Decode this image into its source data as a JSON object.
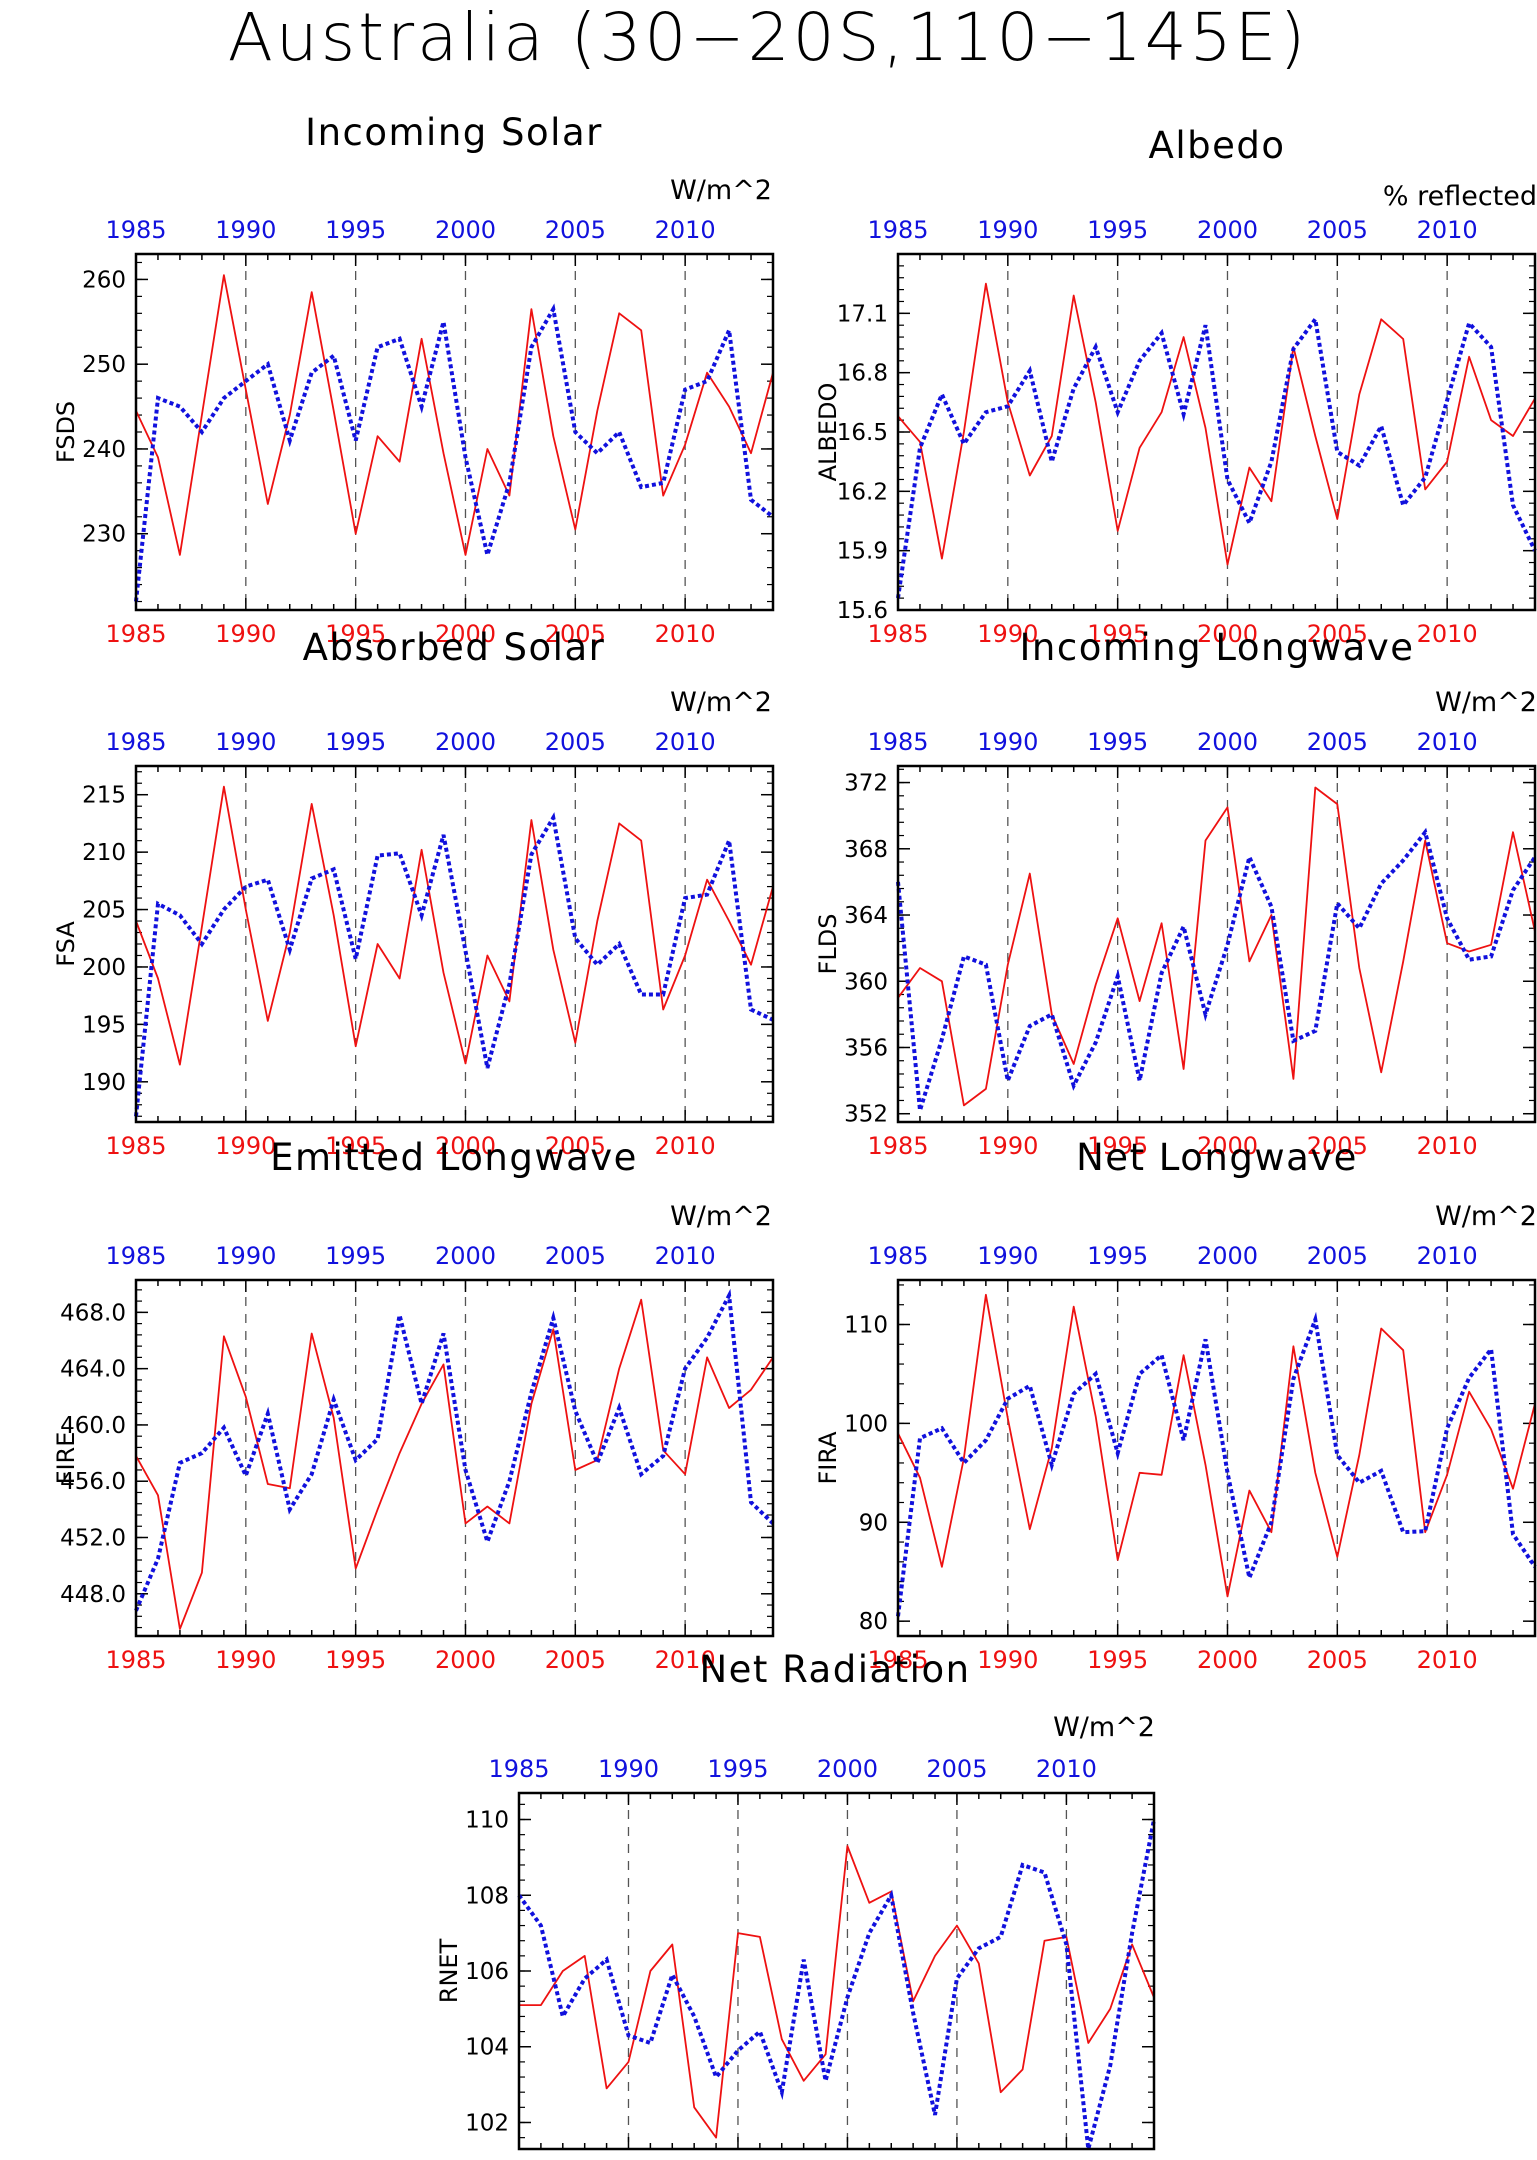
{
  "title": "Australia (30−20S,110−145E)",
  "colors": {
    "red_series": "#ee1111",
    "blue_series": "#1111dd",
    "axis": "#000000",
    "gridline": "#555555"
  },
  "chart_data": [
    {
      "type": "line",
      "title": "Incoming Solar",
      "ylabel": "FSDS",
      "units": "W/m^2",
      "xlim": [
        1985,
        2014
      ],
      "ylim": [
        221,
        263
      ],
      "yticks": [
        "230",
        "240",
        "250",
        "260"
      ],
      "xticks_bottom": [
        "1985",
        "1990",
        "1995",
        "2000",
        "2005",
        "2010"
      ],
      "xticks_top": [
        "1985",
        "1990",
        "1995",
        "2000",
        "2005",
        "2010"
      ],
      "year_lines": [
        1990,
        1995,
        2000,
        2005,
        2010
      ],
      "red": {
        "x": [
          1985,
          1986,
          1987,
          1988,
          1989,
          1990,
          1991,
          1992,
          1993,
          1994,
          1995,
          1996,
          1997,
          1998,
          1999,
          2000,
          2001,
          2002,
          2003,
          2004,
          2005,
          2006,
          2007,
          2008,
          2009,
          2010,
          2011,
          2012,
          2013,
          2014
        ],
        "values": [
          244.5,
          239,
          227.5,
          244,
          260.5,
          247,
          233.5,
          244,
          258.5,
          244.5,
          230,
          241.5,
          238.5,
          253,
          239.5,
          227.5,
          240,
          234.5,
          256.5,
          241.5,
          230.5,
          244.5,
          256,
          254,
          234.5,
          240.5,
          249,
          245,
          239.5,
          249
        ]
      },
      "blue": {
        "x": [
          1985,
          1986,
          1987,
          1988,
          1989,
          1990,
          1991,
          1992,
          1993,
          1994,
          1995,
          1996,
          1997,
          1998,
          1999,
          2000,
          2001,
          2002,
          2003,
          2004,
          2005,
          2006,
          2007,
          2008,
          2009,
          2010,
          2011,
          2012,
          2013,
          2014
        ],
        "values": [
          222,
          246,
          245,
          242,
          246,
          248,
          250,
          241,
          249,
          251,
          241,
          252,
          253,
          245,
          255,
          239,
          227.5,
          236,
          252,
          256.5,
          242,
          239.5,
          242,
          235.5,
          236,
          247,
          248,
          254,
          234,
          232
        ]
      }
    },
    {
      "type": "line",
      "title": "Albedo",
      "ylabel": "ALBEDO",
      "units": "% reflected",
      "xlim": [
        1985,
        2014
      ],
      "ylim": [
        15.6,
        17.4
      ],
      "yticks": [
        "15.6",
        "15.9",
        "16.2",
        "16.5",
        "16.8",
        "17.1"
      ],
      "xticks_bottom": [
        "1985",
        "1990",
        "1995",
        "2000",
        "2005",
        "2010"
      ],
      "xticks_top": [
        "1985",
        "1990",
        "1995",
        "2000",
        "2005",
        "2010"
      ],
      "year_lines": [
        1990,
        1995,
        2000,
        2005,
        2010
      ],
      "red": {
        "x": [
          1985,
          1986,
          1987,
          1988,
          1989,
          1990,
          1991,
          1992,
          1993,
          1994,
          1995,
          1996,
          1997,
          1998,
          1999,
          2000,
          2001,
          2002,
          2003,
          2004,
          2005,
          2006,
          2007,
          2008,
          2009,
          2010,
          2011,
          2012,
          2013,
          2014
        ],
        "values": [
          16.58,
          16.45,
          15.86,
          16.5,
          17.25,
          16.65,
          16.28,
          16.48,
          17.19,
          16.65,
          16.0,
          16.42,
          16.6,
          16.98,
          16.52,
          15.83,
          16.32,
          16.15,
          16.93,
          16.48,
          16.06,
          16.69,
          17.07,
          16.97,
          16.21,
          16.35,
          16.88,
          16.56,
          16.48,
          16.67
        ]
      },
      "blue": {
        "x": [
          1985,
          1986,
          1987,
          1988,
          1989,
          1990,
          1991,
          1992,
          1993,
          1994,
          1995,
          1996,
          1997,
          1998,
          1999,
          2000,
          2001,
          2002,
          2003,
          2004,
          2005,
          2006,
          2007,
          2008,
          2009,
          2010,
          2011,
          2012,
          2013,
          2014
        ],
        "values": [
          15.66,
          16.42,
          16.69,
          16.44,
          16.6,
          16.63,
          16.81,
          16.35,
          16.72,
          16.93,
          16.6,
          16.86,
          17.0,
          16.59,
          17.04,
          16.26,
          16.04,
          16.35,
          16.92,
          17.07,
          16.4,
          16.33,
          16.53,
          16.13,
          16.27,
          16.66,
          17.05,
          16.93,
          16.13,
          15.9
        ]
      }
    },
    {
      "type": "line",
      "title": "Absorbed Solar",
      "ylabel": "FSA",
      "units": "W/m^2",
      "xlim": [
        1985,
        2014
      ],
      "ylim": [
        186.5,
        217.5
      ],
      "yticks": [
        "190",
        "195",
        "200",
        "205",
        "210",
        "215"
      ],
      "xticks_bottom": [
        "1985",
        "1990",
        "1995",
        "2000",
        "2005",
        "2010"
      ],
      "xticks_top": [
        "1985",
        "1990",
        "1995",
        "2000",
        "2005",
        "2010"
      ],
      "year_lines": [
        1990,
        1995,
        2000,
        2005,
        2010
      ],
      "red": {
        "x": [
          1985,
          1986,
          1987,
          1988,
          1989,
          1990,
          1991,
          1992,
          1993,
          1994,
          1995,
          1996,
          1997,
          1998,
          1999,
          2000,
          2001,
          2002,
          2003,
          2004,
          2005,
          2006,
          2007,
          2008,
          2009,
          2010,
          2011,
          2012,
          2013,
          2014
        ],
        "values": [
          204,
          199,
          191.5,
          203.5,
          215.7,
          205,
          195.3,
          203,
          214.2,
          204.5,
          193.1,
          202,
          199,
          210.2,
          199.5,
          191.6,
          201,
          197,
          212.8,
          201.5,
          193.4,
          204,
          212.5,
          211,
          196.3,
          201,
          207.6,
          204,
          200.2,
          207
        ]
      },
      "blue": {
        "x": [
          1985,
          1986,
          1987,
          1988,
          1989,
          1990,
          1991,
          1992,
          1993,
          1994,
          1995,
          1996,
          1997,
          1998,
          1999,
          2000,
          2001,
          2002,
          2003,
          2004,
          2005,
          2006,
          2007,
          2008,
          2009,
          2010,
          2011,
          2012,
          2013,
          2014
        ],
        "values": [
          187,
          205.5,
          204.5,
          202,
          205,
          207,
          207.6,
          201.5,
          207.7,
          208.5,
          200.7,
          209.7,
          209.9,
          204.5,
          211.5,
          201.4,
          191.2,
          198.5,
          209.8,
          213,
          202.5,
          200.2,
          202,
          197.6,
          197.6,
          206,
          206.3,
          211,
          196.3,
          195.4
        ]
      }
    },
    {
      "type": "line",
      "title": "Incoming Longwave",
      "ylabel": "FLDS",
      "units": "W/m^2",
      "xlim": [
        1985,
        2014
      ],
      "ylim": [
        351.5,
        373
      ],
      "yticks": [
        "352",
        "356",
        "360",
        "364",
        "368",
        "372"
      ],
      "xticks_bottom": [
        "1985",
        "1990",
        "1995",
        "2000",
        "2005",
        "2010"
      ],
      "xticks_top": [
        "1985",
        "1990",
        "1995",
        "2000",
        "2005",
        "2010"
      ],
      "year_lines": [
        1990,
        1995,
        2000,
        2005,
        2010
      ],
      "red": {
        "x": [
          1985,
          1986,
          1987,
          1988,
          1989,
          1990,
          1991,
          1992,
          1993,
          1994,
          1995,
          1996,
          1997,
          1998,
          1999,
          2000,
          2001,
          2002,
          2003,
          2004,
          2005,
          2006,
          2007,
          2008,
          2009,
          2010,
          2011,
          2012,
          2013,
          2014
        ],
        "values": [
          359,
          360.8,
          360,
          352.5,
          353.5,
          361,
          366.5,
          358,
          355,
          359.8,
          363.8,
          358.8,
          363.5,
          354.7,
          368.5,
          370.5,
          361.2,
          364,
          354.1,
          371.7,
          370.7,
          360.8,
          354.5,
          361.2,
          368.5,
          362.3,
          361.8,
          362.2,
          369,
          363
        ]
      },
      "blue": {
        "x": [
          1985,
          1986,
          1987,
          1988,
          1989,
          1990,
          1991,
          1992,
          1993,
          1994,
          1995,
          1996,
          1997,
          1998,
          1999,
          2000,
          2001,
          2002,
          2003,
          2004,
          2005,
          2006,
          2007,
          2008,
          2009,
          2010,
          2011,
          2012,
          2013,
          2014
        ],
        "values": [
          366,
          352.2,
          356.5,
          361.5,
          361,
          354,
          357.3,
          358,
          353.7,
          356.3,
          360.3,
          354,
          360.5,
          363.3,
          358,
          362.2,
          367.5,
          364.5,
          356.4,
          357,
          364.7,
          363.2,
          365.9,
          367.3,
          369,
          363.8,
          361.3,
          361.5,
          365.5,
          367.5
        ]
      }
    },
    {
      "type": "line",
      "title": "Emitted Longwave",
      "ylabel": "FIRE",
      "units": "W/m^2",
      "xlim": [
        1985,
        2014
      ],
      "ylim": [
        445,
        470.3
      ],
      "yticks": [
        "448.0",
        "452.0",
        "456.0",
        "460.0",
        "464.0",
        "468.0"
      ],
      "xticks_bottom": [
        "1985",
        "1990",
        "1995",
        "2000",
        "2005",
        "2010"
      ],
      "xticks_top": [
        "1985",
        "1990",
        "1995",
        "2000",
        "2005",
        "2010"
      ],
      "year_lines": [
        1990,
        1995,
        2000,
        2005,
        2010
      ],
      "red": {
        "x": [
          1985,
          1986,
          1987,
          1988,
          1989,
          1990,
          1991,
          1992,
          1993,
          1994,
          1995,
          1996,
          1997,
          1998,
          1999,
          2000,
          2001,
          2002,
          2003,
          2004,
          2005,
          2006,
          2007,
          2008,
          2009,
          2010,
          2011,
          2012,
          2013,
          2014
        ],
        "values": [
          457.8,
          455,
          445.5,
          449.5,
          466.3,
          462,
          455.8,
          455.5,
          466.5,
          460.5,
          449.8,
          454,
          458,
          461.5,
          464.3,
          453,
          454.2,
          453,
          461.5,
          466.8,
          456.8,
          457.5,
          464,
          468.9,
          458.2,
          456.5,
          464.8,
          461.2,
          462.5,
          464.8
        ]
      },
      "blue": {
        "x": [
          1985,
          1986,
          1987,
          1988,
          1989,
          1990,
          1991,
          1992,
          1993,
          1994,
          1995,
          1996,
          1997,
          1998,
          1999,
          2000,
          2001,
          2002,
          2003,
          2004,
          2005,
          2006,
          2007,
          2008,
          2009,
          2010,
          2011,
          2012,
          2013,
          2014
        ],
        "values": [
          446.8,
          450.5,
          457.3,
          458,
          459.8,
          456.4,
          460.8,
          454,
          456.5,
          461.8,
          457.5,
          459,
          467.8,
          461.5,
          466.5,
          456.8,
          451.7,
          456,
          462.3,
          467.6,
          461,
          457.3,
          461.2,
          456.5,
          457.8,
          464,
          466.2,
          469.2,
          454.5,
          453
        ]
      }
    },
    {
      "type": "line",
      "title": "Net Longwave",
      "ylabel": "FIRA",
      "units": "W/m^2",
      "xlim": [
        1985,
        2014
      ],
      "ylim": [
        78.5,
        114.5
      ],
      "yticks": [
        "80",
        "90",
        "100",
        "110"
      ],
      "xticks_bottom": [
        "1985",
        "1990",
        "1995",
        "2000",
        "2005",
        "2010"
      ],
      "xticks_top": [
        "1985",
        "1990",
        "1995",
        "2000",
        "2005",
        "2010"
      ],
      "year_lines": [
        1990,
        1995,
        2000,
        2005,
        2010
      ],
      "red": {
        "x": [
          1985,
          1986,
          1987,
          1988,
          1989,
          1990,
          1991,
          1992,
          1993,
          1994,
          1995,
          1996,
          1997,
          1998,
          1999,
          2000,
          2001,
          2002,
          2003,
          2004,
          2005,
          2006,
          2007,
          2008,
          2009,
          2010,
          2011,
          2012,
          2013,
          2014
        ],
        "values": [
          99,
          94.5,
          85.5,
          96.5,
          113,
          100.5,
          89.3,
          97.5,
          111.8,
          100.7,
          86.2,
          95,
          94.8,
          106.9,
          95.8,
          82.5,
          93.2,
          89,
          107.8,
          95,
          86.5,
          96.8,
          109.6,
          107.4,
          89,
          94.8,
          103.2,
          99.4,
          93.4,
          102
        ]
      },
      "blue": {
        "x": [
          1985,
          1986,
          1987,
          1988,
          1989,
          1990,
          1991,
          1992,
          1993,
          1994,
          1995,
          1996,
          1997,
          1998,
          1999,
          2000,
          2001,
          2002,
          2003,
          2004,
          2005,
          2006,
          2007,
          2008,
          2009,
          2010,
          2011,
          2012,
          2013,
          2014
        ],
        "values": [
          80.5,
          98.5,
          99.5,
          96,
          98.3,
          102.5,
          103.8,
          95.8,
          103,
          105,
          97,
          105,
          106.9,
          98.3,
          108.5,
          95,
          84.4,
          90,
          104.5,
          110.5,
          96.8,
          94,
          95.2,
          89,
          89.1,
          99.5,
          104.6,
          107.5,
          88.8,
          85.5
        ]
      }
    },
    {
      "type": "line",
      "title": "Net Radiation",
      "ylabel": "RNET",
      "units": "W/m^2",
      "xlim": [
        1985,
        2014
      ],
      "ylim": [
        101.3,
        110.7
      ],
      "yticks": [
        "102",
        "104",
        "106",
        "108",
        "110"
      ],
      "xticks_bottom": [
        "1985",
        "1990",
        "1995",
        "2000",
        "2005",
        "2010"
      ],
      "xticks_top": [
        "1985",
        "1990",
        "1995",
        "2000",
        "2005",
        "2010"
      ],
      "year_lines": [
        1990,
        1995,
        2000,
        2005,
        2010
      ],
      "red": {
        "x": [
          1985,
          1986,
          1987,
          1988,
          1989,
          1990,
          1991,
          1992,
          1993,
          1994,
          1995,
          1996,
          1997,
          1998,
          1999,
          2000,
          2001,
          2002,
          2003,
          2004,
          2005,
          2006,
          2007,
          2008,
          2009,
          2010,
          2011,
          2012,
          2013,
          2014
        ],
        "values": [
          105.1,
          105.1,
          106,
          106.4,
          102.9,
          103.6,
          106,
          106.7,
          102.4,
          101.6,
          107,
          106.9,
          104.2,
          103.1,
          103.8,
          109.3,
          107.8,
          108.1,
          105.2,
          106.4,
          107.2,
          106.2,
          102.8,
          103.4,
          106.8,
          106.9,
          104.1,
          105,
          106.7,
          105.3
        ]
      },
      "blue": {
        "x": [
          1985,
          1986,
          1987,
          1988,
          1989,
          1990,
          1991,
          1992,
          1993,
          1994,
          1995,
          1996,
          1997,
          1998,
          1999,
          2000,
          2001,
          2002,
          2003,
          2004,
          2005,
          2006,
          2007,
          2008,
          2009,
          2010,
          2011,
          2012,
          2013,
          2014
        ],
        "values": [
          108,
          107.2,
          104.8,
          105.8,
          106.3,
          104.3,
          104.1,
          105.9,
          104.8,
          103.2,
          103.9,
          104.4,
          102.8,
          106.3,
          103.1,
          105.3,
          107,
          108,
          104.9,
          102.2,
          105.8,
          106.6,
          106.9,
          108.8,
          108.6,
          106.7,
          101.3,
          103.5,
          107,
          110
        ]
      }
    }
  ]
}
